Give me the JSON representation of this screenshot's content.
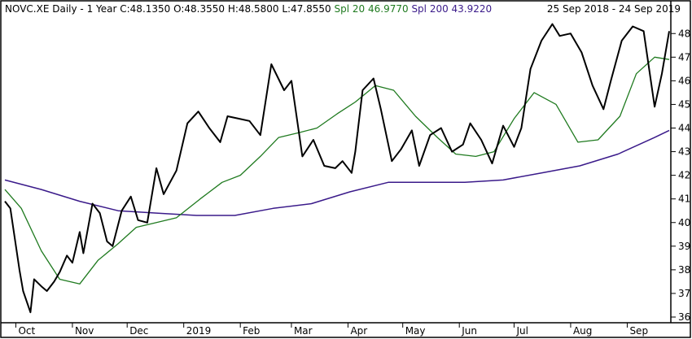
{
  "header": {
    "symbol": "NOVC.XE Daily",
    "period": "1 Year",
    "ohlc": "C:48.1350 O:48.3550 H:48.5800 L:47.8550",
    "spl20_label": "Spl 20 46.9770",
    "spl200_label": "Spl 200 43.9220",
    "date_range": "25 Sep 2018  -  24 Sep 2019"
  },
  "colors": {
    "price": "#000000",
    "spl20": "#1f7a1f",
    "spl200": "#3a1a8a",
    "frame": "#000000"
  },
  "chart_data": {
    "type": "line",
    "title": "NOVC.XE Daily - 1 Year",
    "xlabel": "",
    "ylabel": "",
    "ylim": [
      36,
      48.8
    ],
    "y_ticks": [
      36,
      37,
      38,
      39,
      40,
      41,
      42,
      43,
      44,
      45,
      46,
      47,
      48
    ],
    "x_tick_labels": [
      "Oct",
      "Nov",
      "Dec",
      "2019",
      "Feb",
      "Mar",
      "Apr",
      "May",
      "Jun",
      "Jul",
      "Aug",
      "Sep"
    ],
    "x_tick_months": [
      "2018-10",
      "2018-11",
      "2018-12",
      "2019-01",
      "2019-02",
      "2019-03",
      "2019-04",
      "2019-05",
      "2019-06",
      "2019-07",
      "2019-08",
      "2019-09"
    ],
    "series": [
      {
        "name": "NOVC.XE",
        "x": [
          "2018-09-25",
          "2018-09-28",
          "2018-10-03",
          "2018-10-05",
          "2018-10-09",
          "2018-10-11",
          "2018-10-15",
          "2018-10-18",
          "2018-10-22",
          "2018-10-25",
          "2018-10-29",
          "2018-11-01",
          "2018-11-05",
          "2018-11-07",
          "2018-11-12",
          "2018-11-16",
          "2018-11-20",
          "2018-11-23",
          "2018-11-28",
          "2018-12-03",
          "2018-12-07",
          "2018-12-12",
          "2018-12-17",
          "2018-12-21",
          "2018-12-28",
          "2019-01-03",
          "2019-01-09",
          "2019-01-15",
          "2019-01-21",
          "2019-01-25",
          "2019-01-31",
          "2019-02-06",
          "2019-02-12",
          "2019-02-18",
          "2019-02-25",
          "2019-03-01",
          "2019-03-07",
          "2019-03-13",
          "2019-03-19",
          "2019-03-25",
          "2019-03-29",
          "2019-04-03",
          "2019-04-05",
          "2019-04-09",
          "2019-04-15",
          "2019-04-19",
          "2019-04-25",
          "2019-04-30",
          "2019-05-06",
          "2019-05-10",
          "2019-05-16",
          "2019-05-22",
          "2019-05-28",
          "2019-06-03",
          "2019-06-07",
          "2019-06-13",
          "2019-06-19",
          "2019-06-25",
          "2019-07-01",
          "2019-07-05",
          "2019-07-10",
          "2019-07-16",
          "2019-07-22",
          "2019-07-26",
          "2019-08-01",
          "2019-08-07",
          "2019-08-13",
          "2019-08-19",
          "2019-08-23",
          "2019-08-29",
          "2019-09-04",
          "2019-09-10",
          "2019-09-16",
          "2019-09-20",
          "2019-09-24"
        ],
        "y": [
          40.9,
          40.6,
          38.0,
          37.1,
          36.2,
          37.6,
          37.3,
          37.1,
          37.5,
          37.9,
          38.6,
          38.3,
          39.6,
          38.7,
          40.8,
          40.4,
          39.2,
          39.0,
          40.5,
          41.1,
          40.1,
          40.0,
          42.3,
          41.2,
          42.2,
          44.2,
          44.7,
          44.0,
          43.4,
          44.5,
          44.4,
          44.3,
          43.7,
          46.7,
          45.6,
          46.0,
          42.8,
          43.5,
          42.4,
          42.3,
          42.6,
          42.1,
          43.0,
          45.6,
          46.1,
          44.8,
          42.6,
          43.1,
          43.9,
          42.4,
          43.7,
          44.0,
          43.0,
          43.3,
          44.2,
          43.5,
          42.5,
          44.1,
          43.2,
          44.0,
          46.5,
          47.7,
          48.4,
          47.9,
          48.0,
          47.2,
          45.8,
          44.8,
          46.0,
          47.7,
          48.3,
          48.1,
          44.9,
          46.3,
          48.1
        ],
        "color": "#000000"
      },
      {
        "name": "Spl 20",
        "x": [
          "2018-09-25",
          "2018-10-04",
          "2018-10-15",
          "2018-10-25",
          "2018-11-05",
          "2018-11-15",
          "2018-11-26",
          "2018-12-06",
          "2018-12-17",
          "2018-12-28",
          "2019-01-10",
          "2019-01-22",
          "2019-02-01",
          "2019-02-12",
          "2019-02-22",
          "2019-03-05",
          "2019-03-15",
          "2019-03-26",
          "2019-04-05",
          "2019-04-16",
          "2019-04-26",
          "2019-05-08",
          "2019-05-20",
          "2019-05-30",
          "2019-06-10",
          "2019-06-20",
          "2019-07-01",
          "2019-07-12",
          "2019-07-24",
          "2019-08-05",
          "2019-08-16",
          "2019-08-28",
          "2019-09-06",
          "2019-09-16",
          "2019-09-24"
        ],
        "y": [
          41.4,
          40.6,
          38.8,
          37.6,
          37.4,
          38.4,
          39.1,
          39.8,
          40.0,
          40.2,
          41.0,
          41.7,
          42.0,
          42.8,
          43.6,
          43.8,
          44.0,
          44.6,
          45.1,
          45.8,
          45.6,
          44.5,
          43.6,
          42.9,
          42.8,
          43.0,
          44.4,
          45.5,
          45.0,
          43.4,
          43.5,
          44.5,
          46.3,
          47.0,
          46.9
        ],
        "color": "#1f7a1f"
      },
      {
        "name": "Spl 200",
        "x": [
          "2018-09-25",
          "2018-10-15",
          "2018-11-05",
          "2018-11-26",
          "2018-12-17",
          "2019-01-08",
          "2019-01-29",
          "2019-02-19",
          "2019-03-12",
          "2019-04-02",
          "2019-04-23",
          "2019-05-14",
          "2019-06-04",
          "2019-06-25",
          "2019-07-16",
          "2019-08-06",
          "2019-08-27",
          "2019-09-16",
          "2019-09-24"
        ],
        "y": [
          41.8,
          41.4,
          40.9,
          40.5,
          40.4,
          40.3,
          40.3,
          40.6,
          40.8,
          41.3,
          41.7,
          41.7,
          41.7,
          41.8,
          42.1,
          42.4,
          42.9,
          43.6,
          43.9
        ],
        "color": "#3a1a8a"
      }
    ],
    "grid": false,
    "legend": "top-left"
  }
}
